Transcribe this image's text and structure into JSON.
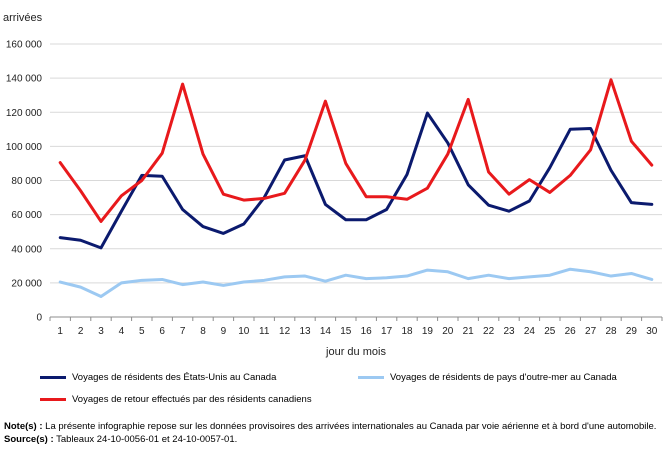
{
  "chart_data": {
    "type": "line",
    "ylabel": "arrivées",
    "xlabel": "jour du mois",
    "ylim": [
      0,
      160000
    ],
    "yticks": [
      0,
      20000,
      40000,
      60000,
      80000,
      100000,
      120000,
      140000,
      160000
    ],
    "ytick_labels": [
      "0",
      "20 000",
      "40 000",
      "60 000",
      "80 000",
      "100 000",
      "120 000",
      "140 000",
      "160 000"
    ],
    "x": [
      1,
      2,
      3,
      4,
      5,
      6,
      7,
      8,
      9,
      10,
      11,
      12,
      13,
      14,
      15,
      16,
      17,
      18,
      19,
      20,
      21,
      22,
      23,
      24,
      25,
      26,
      27,
      28,
      29,
      30
    ],
    "x_labels": [
      "1",
      "2",
      "3",
      "4",
      "5",
      "6",
      "7",
      "8",
      "9",
      "10",
      "11",
      "12",
      "13",
      "14",
      "15",
      "16",
      "17",
      "18",
      "19",
      "20",
      "21",
      "22",
      "23",
      "24",
      "25",
      "26",
      "27",
      "28",
      "29",
      "30"
    ],
    "grid": true,
    "legend_position": "bottom",
    "series": [
      {
        "name": "Voyages de résidents des États-Unis au Canada",
        "color": "#0b1a6e",
        "values": [
          46500,
          45000,
          40500,
          62000,
          83000,
          82500,
          63000,
          53000,
          49000,
          54500,
          70000,
          92000,
          94500,
          66000,
          57000,
          57000,
          63000,
          83500,
          119500,
          102000,
          77500,
          65500,
          62000,
          68000,
          87500,
          110000,
          110500,
          86000,
          67000,
          66000
        ]
      },
      {
        "name": "Voyages de résidents de pays d'outre-mer au Canada",
        "color": "#9cc9f2",
        "values": [
          20500,
          17500,
          12000,
          20000,
          21500,
          22000,
          19000,
          20500,
          18500,
          20500,
          21500,
          23500,
          24000,
          21000,
          24500,
          22500,
          23000,
          24000,
          27500,
          26500,
          22500,
          24500,
          22500,
          23500,
          24500,
          28000,
          26500,
          24000,
          25500,
          22000
        ]
      },
      {
        "name": "Voyages de retour effectués par des résidents canadiens",
        "color": "#e8191c",
        "values": [
          90500,
          74000,
          56000,
          71000,
          80000,
          96000,
          136500,
          95500,
          72000,
          68500,
          69500,
          72500,
          92000,
          126500,
          90000,
          70500,
          70500,
          69000,
          75500,
          95500,
          127500,
          85000,
          72000,
          80500,
          73000,
          83000,
          98000,
          139000,
          103000,
          89000
        ]
      }
    ]
  },
  "notes": {
    "note_label": "Note(s) :",
    "note_text": " La présente infographie repose sur les données provisoires des arrivées internationales au Canada par voie aérienne et à bord d'une automobile.",
    "source_label": "Source(s) :",
    "source_text": " Tableaux 24-10-0056-01 et 24-10-0057-01."
  }
}
